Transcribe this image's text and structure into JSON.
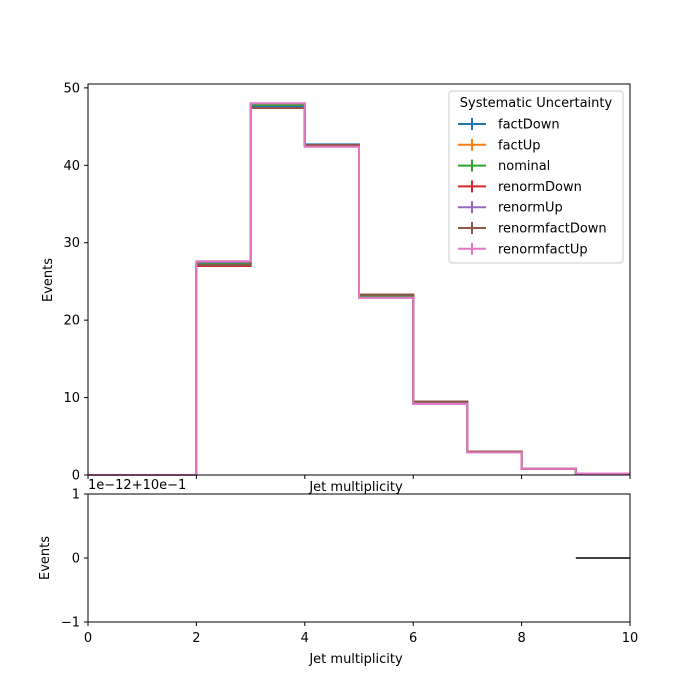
{
  "chart_data": [
    {
      "type": "line",
      "drawstyle": "step",
      "xlabel": "Jet multiplicity",
      "ylabel": "Events",
      "xlim": [
        0,
        10
      ],
      "ylim": [
        0,
        50.5
      ],
      "yticks": [
        0,
        10,
        20,
        30,
        40,
        50
      ],
      "xticks": [
        0,
        2,
        4,
        6,
        8,
        10
      ],
      "bin_edges": [
        0,
        1,
        2,
        3,
        4,
        5,
        6,
        7,
        8,
        9,
        10
      ],
      "legend": {
        "title": "Systematic Uncertainty",
        "placement": "top-right"
      },
      "series": [
        {
          "name": "factDown",
          "color": "#1f77b4",
          "values": [
            0,
            0,
            27.3,
            47.6,
            42.7,
            23.1,
            9.4,
            3.0,
            0.8,
            0.2
          ]
        },
        {
          "name": "factUp",
          "color": "#ff7f0e",
          "values": [
            0,
            0,
            27.4,
            47.8,
            42.5,
            23.0,
            9.3,
            3.0,
            0.8,
            0.2
          ]
        },
        {
          "name": "nominal",
          "color": "#2ca02c",
          "values": [
            0,
            0,
            27.3,
            47.8,
            42.6,
            23.1,
            9.4,
            3.0,
            0.8,
            0.2
          ]
        },
        {
          "name": "renormDown",
          "color": "#d62728",
          "values": [
            0,
            0,
            27.0,
            47.4,
            42.6,
            23.3,
            9.5,
            3.0,
            0.8,
            0.2
          ]
        },
        {
          "name": "renormUp",
          "color": "#9467bd",
          "values": [
            0,
            0,
            27.5,
            48.0,
            42.5,
            22.9,
            9.2,
            2.9,
            0.8,
            0.2
          ]
        },
        {
          "name": "renormfactDown",
          "color": "#8c564b",
          "values": [
            0,
            0,
            27.1,
            47.4,
            42.6,
            23.3,
            9.5,
            3.0,
            0.8,
            0.2
          ]
        },
        {
          "name": "renormfactUp",
          "color": "#e377c2",
          "values": [
            0,
            0,
            27.6,
            48.0,
            42.4,
            22.9,
            9.2,
            2.9,
            0.8,
            0.2
          ]
        }
      ]
    },
    {
      "type": "line",
      "xlabel": "Jet multiplicity",
      "ylabel": "Events",
      "xlim": [
        0,
        10
      ],
      "ylim": [
        -1,
        1
      ],
      "yticks": [
        -1,
        0,
        1
      ],
      "xticks": [
        0,
        2,
        4,
        6,
        8,
        10
      ],
      "offset_text": "1e−12+10e−1",
      "series": [
        {
          "color": "#000000",
          "x": [
            9,
            10
          ],
          "values": [
            0,
            0
          ]
        }
      ]
    }
  ]
}
